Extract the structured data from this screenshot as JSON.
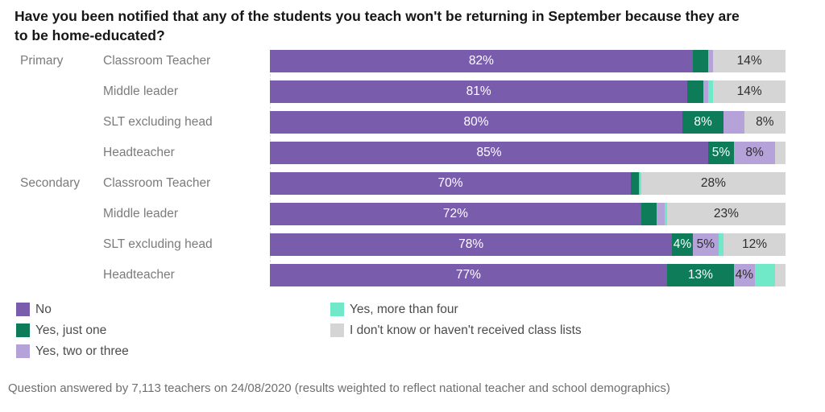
{
  "header": {
    "title_line1": "Have you been notified that any of the students you teach won't be returning in September because they are",
    "title_line2": "to be home-educated?"
  },
  "footer": {
    "text": "Question answered by 7,113 teachers on 24/08/2020 (results weighted to reflect national teacher and school demographics)"
  },
  "colors": {
    "no": "#7a5cad",
    "yes_just_one": "#0e7c58",
    "yes_two_or_three": "#b5a2d8",
    "yes_more_than_four": "#70e9c8",
    "dont_know": "#d5d5d5",
    "label_on_dark": "#ffffff",
    "label_on_light": "#2d2d2d",
    "axis_text": "#7b7b7b"
  },
  "legend": {
    "columns": [
      [
        {
          "label": "No",
          "color": "#7a5cad"
        },
        {
          "label": "Yes, just one",
          "color": "#0e7c58"
        },
        {
          "label": "Yes, two or three",
          "color": "#b5a2d8"
        }
      ],
      [
        {
          "label": "Yes, more than four",
          "color": "#70e9c8"
        },
        {
          "label": "I don't know or haven't received class lists",
          "color": "#d5d5d5"
        }
      ]
    ]
  },
  "chart_data": {
    "type": "bar",
    "variant": "horizontal-stacked",
    "title": "Have you been notified that any of the students you teach won't be returning in September because they are to be home-educated?",
    "unit": "%",
    "xlim": [
      0,
      100
    ],
    "grid": false,
    "legend_position": "bottom",
    "series": [
      "No",
      "Yes, just one",
      "Yes, two or three",
      "Yes, more than four",
      "I don't know or haven't received class lists"
    ],
    "series_colors": [
      "#7a5cad",
      "#0e7c58",
      "#b5a2d8",
      "#70e9c8",
      "#d5d5d5"
    ],
    "series_label_colors": [
      "#ffffff",
      "#ffffff",
      "#2d2d2d",
      "#2d2d2d",
      "#2d2d2d"
    ],
    "rows": [
      {
        "group": "Primary",
        "category": "Classroom Teacher",
        "values": [
          82,
          3,
          1,
          0,
          14
        ],
        "labels": [
          "82%",
          "",
          "",
          "",
          "14%"
        ]
      },
      {
        "group": "",
        "category": "Middle leader",
        "values": [
          81,
          3,
          1,
          1,
          14
        ],
        "labels": [
          "81%",
          "",
          "",
          "",
          "14%"
        ]
      },
      {
        "group": "",
        "category": "SLT excluding head",
        "values": [
          80,
          8,
          4,
          0,
          8
        ],
        "labels": [
          "80%",
          "8%",
          "",
          "",
          "8%"
        ]
      },
      {
        "group": "",
        "category": "Headteacher",
        "values": [
          85,
          5,
          8,
          0,
          2
        ],
        "labels": [
          "85%",
          "5%",
          "8%",
          "",
          ""
        ]
      },
      {
        "group": "Secondary",
        "category": "Classroom Teacher",
        "values": [
          70,
          1.5,
          0.25,
          0.25,
          28
        ],
        "labels": [
          "70%",
          "",
          "",
          "",
          "28%"
        ]
      },
      {
        "group": "",
        "category": "Middle leader",
        "values": [
          72,
          3,
          1.5,
          0.5,
          23
        ],
        "labels": [
          "72%",
          "",
          "",
          "",
          "23%"
        ]
      },
      {
        "group": "",
        "category": "SLT excluding head",
        "values": [
          78,
          4,
          5,
          1,
          12
        ],
        "labels": [
          "78%",
          "4%",
          "5%",
          "",
          "12%"
        ]
      },
      {
        "group": "",
        "category": "Headteacher",
        "values": [
          77,
          13,
          4,
          4,
          2
        ],
        "labels": [
          "77%",
          "13%",
          "4%",
          "",
          ""
        ]
      }
    ]
  }
}
